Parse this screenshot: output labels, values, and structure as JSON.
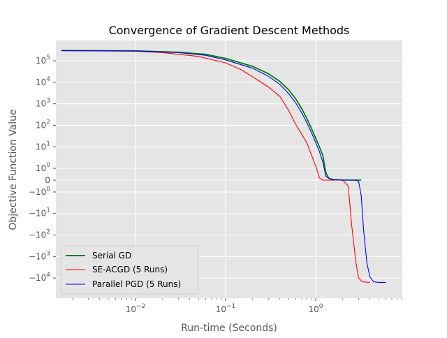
{
  "chart_data": {
    "type": "line",
    "title": "Convergence of Gradient Descent Methods",
    "xlabel": "Run-time (Seconds)",
    "ylabel": "Objective Function Value",
    "xscale": "log",
    "yscale": "symlog",
    "xlim": [
      0.0015,
      7.0
    ],
    "y_ticks": [
      {
        "label": "10⁵",
        "sup": "5",
        "base": "10",
        "sign": ""
      },
      {
        "label": "10⁴",
        "sup": "4",
        "base": "10",
        "sign": ""
      },
      {
        "label": "10³",
        "sup": "3",
        "base": "10",
        "sign": ""
      },
      {
        "label": "10²",
        "sup": "2",
        "base": "10",
        "sign": ""
      },
      {
        "label": "10¹",
        "sup": "1",
        "base": "10",
        "sign": ""
      },
      {
        "label": "10⁰",
        "sup": "0",
        "base": "10",
        "sign": ""
      },
      {
        "label": "0",
        "sup": "",
        "base": "0",
        "sign": ""
      },
      {
        "label": "−10⁰",
        "sup": "0",
        "base": "10",
        "sign": "−"
      },
      {
        "label": "−10¹",
        "sup": "1",
        "base": "10",
        "sign": "−"
      },
      {
        "label": "−10²",
        "sup": "2",
        "base": "10",
        "sign": "−"
      },
      {
        "label": "−10³",
        "sup": "3",
        "base": "10",
        "sign": "−"
      },
      {
        "label": "−10⁴",
        "sup": "4",
        "base": "10",
        "sign": "−"
      }
    ],
    "x_ticks": [
      {
        "label": "10⁻²",
        "sup": "−2",
        "value": 0.01
      },
      {
        "label": "10⁻¹",
        "sup": "−1",
        "value": 0.1
      },
      {
        "label": "10⁰",
        "sup": "0",
        "value": 1
      }
    ],
    "grid": true,
    "legend_position": "lower-left",
    "series": [
      {
        "name": "Serial GD",
        "color": "#008000",
        "points": [
          [
            0.0015,
            300000
          ],
          [
            0.01,
            290000
          ],
          [
            0.03,
            250000
          ],
          [
            0.06,
            200000
          ],
          [
            0.1,
            130000
          ],
          [
            0.2,
            55000
          ],
          [
            0.3,
            25000
          ],
          [
            0.4,
            11000
          ],
          [
            0.5,
            4500
          ],
          [
            0.6,
            1700
          ],
          [
            0.7,
            600
          ],
          [
            0.8,
            200
          ],
          [
            0.9,
            70
          ],
          [
            1.0,
            25
          ],
          [
            1.1,
            10
          ],
          [
            1.2,
            4
          ],
          [
            1.25,
            1.5
          ],
          [
            1.3,
            0.6
          ],
          [
            1.4,
            0.15
          ],
          [
            1.6,
            0.04
          ],
          [
            2.0,
            0.01
          ],
          [
            3.0,
            0.005
          ],
          [
            3.2,
            0.005
          ]
        ]
      },
      {
        "name": "SE-ACGD (5 Runs)",
        "color": "#ff0000",
        "points": [
          [
            0.0015,
            300000
          ],
          [
            0.01,
            280000
          ],
          [
            0.02,
            240000
          ],
          [
            0.05,
            160000
          ],
          [
            0.1,
            80000
          ],
          [
            0.15,
            38000
          ],
          [
            0.2,
            18000
          ],
          [
            0.3,
            6000
          ],
          [
            0.4,
            2200
          ],
          [
            0.5,
            500
          ],
          [
            0.6,
            110
          ],
          [
            0.8,
            15
          ],
          [
            0.9,
            4
          ],
          [
            1.0,
            1.3
          ],
          [
            1.1,
            0.2
          ],
          [
            1.2,
            0
          ],
          [
            2.0,
            0
          ],
          [
            2.3,
            -0.5
          ],
          [
            2.5,
            -30
          ],
          [
            2.8,
            -2000
          ],
          [
            3.0,
            -10000
          ],
          [
            3.3,
            -15000
          ],
          [
            4.0,
            -16000
          ]
        ]
      },
      {
        "name": "Parallel PGD (5 Runs)",
        "color": "#0000ff",
        "points": [
          [
            0.0015,
            300000
          ],
          [
            0.01,
            285000
          ],
          [
            0.03,
            240000
          ],
          [
            0.06,
            180000
          ],
          [
            0.1,
            110000
          ],
          [
            0.2,
            45000
          ],
          [
            0.3,
            19000
          ],
          [
            0.4,
            8000
          ],
          [
            0.5,
            3000
          ],
          [
            0.6,
            1100
          ],
          [
            0.7,
            380
          ],
          [
            0.8,
            130
          ],
          [
            0.9,
            45
          ],
          [
            1.0,
            16
          ],
          [
            1.1,
            6
          ],
          [
            1.2,
            2
          ],
          [
            1.3,
            0.3
          ],
          [
            1.5,
            0.05
          ],
          [
            2.0,
            0.005
          ],
          [
            2.8,
            0
          ],
          [
            3.0,
            -0.1
          ],
          [
            3.2,
            -1.5
          ],
          [
            3.4,
            -60
          ],
          [
            3.7,
            -2000
          ],
          [
            4.0,
            -9000
          ],
          [
            4.4,
            -15000
          ],
          [
            5.0,
            -16000
          ],
          [
            6.0,
            -16000
          ]
        ]
      }
    ]
  }
}
